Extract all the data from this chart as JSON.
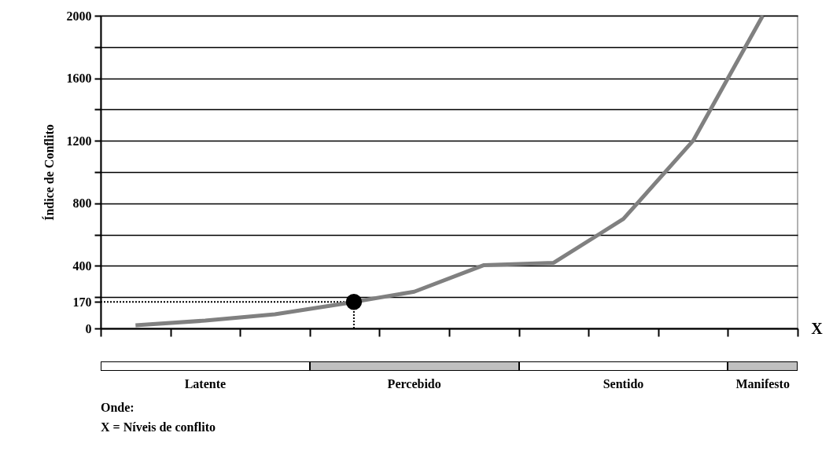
{
  "chart_data": {
    "type": "line",
    "ylabel": "Índice de Conflito",
    "xlabel": "X",
    "categories": [
      null,
      null,
      null,
      null,
      null,
      null,
      null,
      null,
      null,
      null
    ],
    "series": [
      {
        "color": "#808080",
        "values": [
          20,
          50,
          90,
          160,
          235,
          405,
          420,
          700,
          1200,
          2000
        ]
      }
    ],
    "ylim": [
      0,
      2000
    ],
    "yticks": [
      0,
      170,
      {
        "value": 200,
        "label": null
      },
      400,
      {
        "value": 600,
        "label": null
      },
      800,
      {
        "value": 1000,
        "label": null
      },
      1200,
      {
        "value": 1400,
        "label": null
      },
      1600,
      {
        "value": 1800,
        "label": null
      },
      2000
    ],
    "grid": "y",
    "line_style": "solid",
    "ref_lines": [
      {
        "axis": "y",
        "value": 170,
        "line_style": "dotted",
        "color": "#000000"
      }
    ],
    "annotations": [
      "Latente",
      "Percebido",
      "Sentido",
      "Manifesto",
      "Onde:",
      "X = Níveis de conflito"
    ]
  }
}
